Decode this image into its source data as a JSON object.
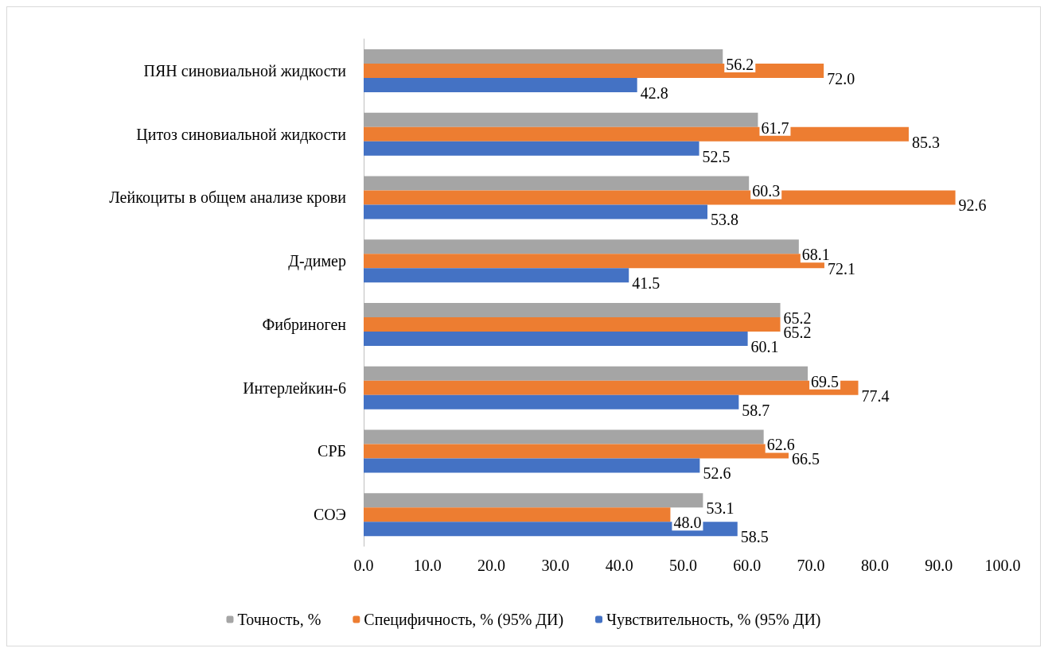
{
  "chart_data": {
    "type": "bar",
    "orientation": "horizontal",
    "categories": [
      "ПЯН синовиальной жидкости",
      "Цитоз синовиальной жидкости",
      "Лейкоциты в общем анализе крови",
      "Д-димер",
      "Фибриноген",
      "Интерлейкин-6",
      "СРБ",
      "СОЭ"
    ],
    "series": [
      {
        "name": "Точность, %",
        "color": "#a5a5a5",
        "values": [
          56.2,
          61.7,
          60.3,
          68.1,
          65.2,
          69.5,
          62.6,
          53.1
        ],
        "value_labels": [
          "56.2",
          "61.7",
          "60.3",
          "68.1",
          "65.2",
          "69.5",
          "62.6",
          "53.1"
        ]
      },
      {
        "name": "Специфичность, % (95% ДИ)",
        "color": "#ed7d31",
        "values": [
          72.0,
          85.3,
          92.6,
          72.1,
          65.2,
          77.4,
          66.5,
          48.0
        ],
        "value_labels": [
          "72.0",
          "85.3",
          "92.6",
          "72.1",
          "65.2",
          "77.4",
          "66.5",
          "48.0"
        ]
      },
      {
        "name": "Чувствительность, % (95% ДИ)",
        "color": "#4472c4",
        "values": [
          42.8,
          52.5,
          53.8,
          41.5,
          60.1,
          58.7,
          52.6,
          58.5
        ],
        "value_labels": [
          "42.8",
          "52.5",
          "53.8",
          "41.5",
          "60.1",
          "58.7",
          "52.6",
          "58.5"
        ]
      }
    ],
    "xlim": [
      0,
      100
    ],
    "xticks": [
      {
        "value": 0,
        "label": "0.0"
      },
      {
        "value": 10,
        "label": "10.0"
      },
      {
        "value": 20,
        "label": "20.0"
      },
      {
        "value": 30,
        "label": "30.0"
      },
      {
        "value": 40,
        "label": "40.0"
      },
      {
        "value": 50,
        "label": "50.0"
      },
      {
        "value": 60,
        "label": "60.0"
      },
      {
        "value": 70,
        "label": "70.0"
      },
      {
        "value": 80,
        "label": "80.0"
      },
      {
        "value": 90,
        "label": "90.0"
      },
      {
        "value": 100,
        "label": "100.0"
      }
    ],
    "grid": false,
    "legend": "bottom"
  }
}
